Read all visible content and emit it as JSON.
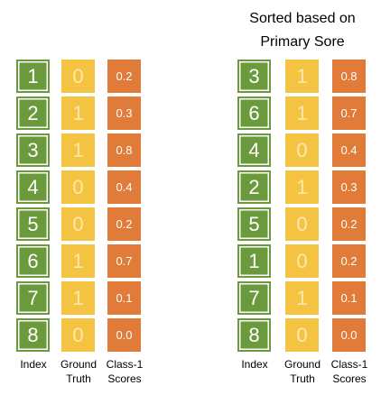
{
  "left_panel": {
    "index": [
      "1",
      "2",
      "3",
      "4",
      "5",
      "6",
      "7",
      "8"
    ],
    "ground_truth": [
      "0",
      "1",
      "1",
      "0",
      "0",
      "1",
      "1",
      "0"
    ],
    "scores": [
      "0.2",
      "0.3",
      "0.8",
      "0.4",
      "0.2",
      "0.7",
      "0.1",
      "0.0"
    ],
    "labels": [
      "Index",
      "Ground Truth",
      "Class-1 Scores"
    ]
  },
  "right_panel": {
    "title": "Sorted based on Primary Sore",
    "index": [
      "3",
      "6",
      "4",
      "2",
      "5",
      "1",
      "7",
      "8"
    ],
    "ground_truth": [
      "1",
      "1",
      "0",
      "1",
      "0",
      "0",
      "1",
      "0"
    ],
    "scores": [
      "0.8",
      "0.7",
      "0.4",
      "0.3",
      "0.2",
      "0.2",
      "0.1",
      "0.0"
    ],
    "labels": [
      "Index",
      "Ground Truth",
      "Class-1 Scores"
    ]
  }
}
